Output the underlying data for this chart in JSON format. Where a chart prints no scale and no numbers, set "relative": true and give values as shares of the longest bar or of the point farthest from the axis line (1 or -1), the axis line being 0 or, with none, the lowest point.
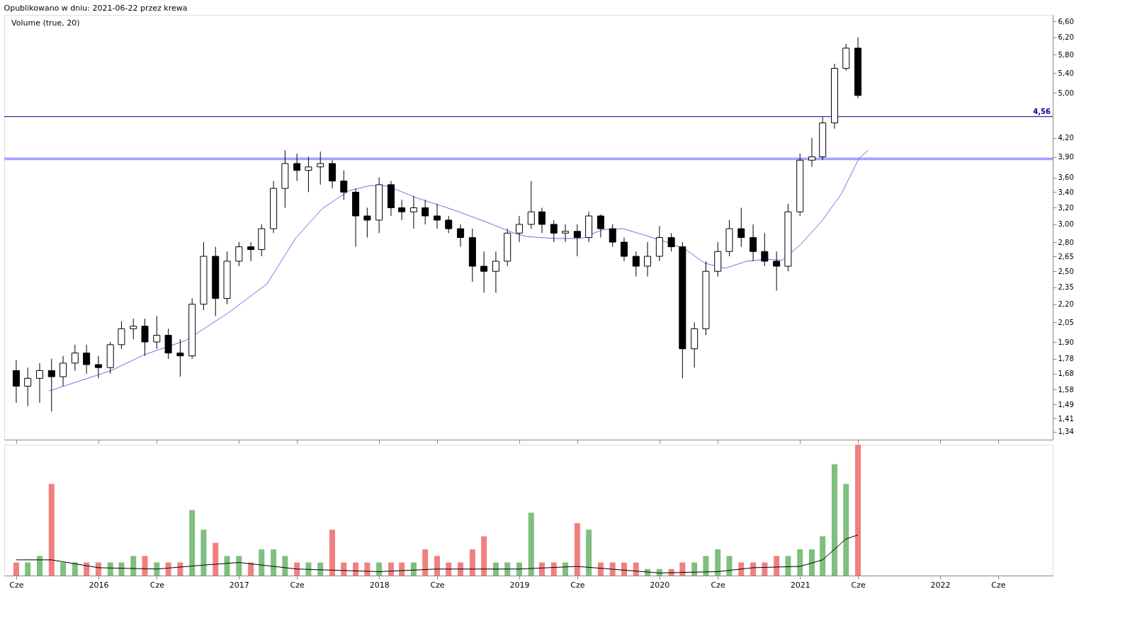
{
  "chart_data": [
    {
      "type": "candlestick",
      "title": "Opublikowano w dniu: 2021-06-22 przez krewa",
      "annotations": [
        "Volume (true, 20)"
      ],
      "x": [
        "2015-06",
        "2015-07",
        "2015-08",
        "2015-09",
        "2015-10",
        "2015-11",
        "2015-12",
        "2016-01",
        "2016-02",
        "2016-03",
        "2016-04",
        "2016-05",
        "2016-06",
        "2016-07",
        "2016-08",
        "2016-09",
        "2016-10",
        "2016-11",
        "2016-12",
        "2017-01",
        "2017-02",
        "2017-03",
        "2017-04",
        "2017-05",
        "2017-06",
        "2017-07",
        "2017-08",
        "2017-09",
        "2017-10",
        "2017-11",
        "2017-12",
        "2018-01",
        "2018-02",
        "2018-03",
        "2018-04",
        "2018-05",
        "2018-06",
        "2018-07",
        "2018-08",
        "2018-09",
        "2018-10",
        "2018-11",
        "2018-12",
        "2019-01",
        "2019-02",
        "2019-03",
        "2019-04",
        "2019-05",
        "2019-06",
        "2019-07",
        "2019-08",
        "2019-09",
        "2019-10",
        "2019-11",
        "2019-12",
        "2020-01",
        "2020-02",
        "2020-03",
        "2020-04",
        "2020-05",
        "2020-06",
        "2020-07",
        "2020-08",
        "2020-09",
        "2020-10",
        "2020-11",
        "2020-12",
        "2021-01",
        "2021-02",
        "2021-03",
        "2021-04",
        "2021-05",
        "2021-06"
      ],
      "ohlc": [
        [
          1.7,
          1.77,
          1.5,
          1.6
        ],
        [
          1.6,
          1.72,
          1.48,
          1.65
        ],
        [
          1.65,
          1.75,
          1.5,
          1.7
        ],
        [
          1.7,
          1.78,
          1.45,
          1.66
        ],
        [
          1.66,
          1.8,
          1.6,
          1.75
        ],
        [
          1.75,
          1.88,
          1.7,
          1.82
        ],
        [
          1.82,
          1.88,
          1.68,
          1.74
        ],
        [
          1.74,
          1.8,
          1.65,
          1.72
        ],
        [
          1.72,
          1.9,
          1.68,
          1.88
        ],
        [
          1.88,
          2.06,
          1.85,
          2.0
        ],
        [
          2.0,
          2.08,
          1.92,
          2.02
        ],
        [
          2.02,
          2.08,
          1.8,
          1.9
        ],
        [
          1.9,
          2.1,
          1.85,
          1.95
        ],
        [
          1.95,
          2.0,
          1.78,
          1.82
        ],
        [
          1.82,
          1.92,
          1.66,
          1.8
        ],
        [
          1.8,
          2.25,
          1.78,
          2.2
        ],
        [
          2.2,
          2.8,
          2.15,
          2.65
        ],
        [
          2.65,
          2.75,
          2.1,
          2.25
        ],
        [
          2.25,
          2.7,
          2.2,
          2.6
        ],
        [
          2.6,
          2.8,
          2.55,
          2.75
        ],
        [
          2.75,
          2.8,
          2.6,
          2.72
        ],
        [
          2.72,
          3.0,
          2.65,
          2.95
        ],
        [
          2.95,
          3.55,
          2.9,
          3.45
        ],
        [
          3.45,
          4.0,
          3.2,
          3.8
        ],
        [
          3.8,
          3.95,
          3.55,
          3.7
        ],
        [
          3.7,
          3.9,
          3.4,
          3.75
        ],
        [
          3.75,
          3.98,
          3.5,
          3.8
        ],
        [
          3.8,
          3.85,
          3.45,
          3.55
        ],
        [
          3.55,
          3.7,
          3.3,
          3.4
        ],
        [
          3.4,
          3.45,
          2.75,
          3.1
        ],
        [
          3.1,
          3.2,
          2.85,
          3.05
        ],
        [
          3.05,
          3.6,
          2.9,
          3.5
        ],
        [
          3.5,
          3.55,
          3.1,
          3.2
        ],
        [
          3.2,
          3.3,
          3.05,
          3.15
        ],
        [
          3.15,
          3.35,
          2.95,
          3.2
        ],
        [
          3.2,
          3.3,
          3.0,
          3.1
        ],
        [
          3.1,
          3.25,
          2.95,
          3.05
        ],
        [
          3.05,
          3.1,
          2.9,
          2.95
        ],
        [
          2.95,
          3.0,
          2.75,
          2.85
        ],
        [
          2.85,
          2.95,
          2.4,
          2.55
        ],
        [
          2.55,
          2.7,
          2.3,
          2.5
        ],
        [
          2.5,
          2.7,
          2.3,
          2.6
        ],
        [
          2.6,
          2.95,
          2.55,
          2.9
        ],
        [
          2.9,
          3.1,
          2.8,
          3.0
        ],
        [
          3.0,
          3.55,
          2.95,
          3.15
        ],
        [
          3.15,
          3.2,
          2.9,
          3.0
        ],
        [
          3.0,
          3.05,
          2.8,
          2.9
        ],
        [
          2.9,
          3.0,
          2.8,
          2.92
        ],
        [
          2.92,
          3.0,
          2.65,
          2.85
        ],
        [
          2.85,
          3.15,
          2.8,
          3.1
        ],
        [
          3.1,
          3.12,
          2.85,
          2.95
        ],
        [
          2.95,
          3.0,
          2.75,
          2.8
        ],
        [
          2.8,
          2.85,
          2.6,
          2.65
        ],
        [
          2.65,
          2.7,
          2.45,
          2.55
        ],
        [
          2.55,
          2.8,
          2.45,
          2.65
        ],
        [
          2.65,
          2.98,
          2.6,
          2.85
        ],
        [
          2.85,
          2.9,
          2.7,
          2.75
        ],
        [
          2.75,
          2.8,
          1.65,
          1.85
        ],
        [
          1.85,
          2.05,
          1.72,
          2.0
        ],
        [
          2.0,
          2.6,
          1.95,
          2.5
        ],
        [
          2.5,
          2.8,
          2.45,
          2.7
        ],
        [
          2.7,
          3.05,
          2.65,
          2.95
        ],
        [
          2.95,
          3.2,
          2.75,
          2.85
        ],
        [
          2.85,
          3.0,
          2.6,
          2.7
        ],
        [
          2.7,
          2.9,
          2.55,
          2.6
        ],
        [
          2.6,
          2.7,
          2.32,
          2.55
        ],
        [
          2.55,
          3.25,
          2.5,
          3.15
        ],
        [
          3.15,
          3.95,
          3.1,
          3.85
        ],
        [
          3.85,
          4.2,
          3.75,
          3.9
        ],
        [
          3.9,
          4.55,
          3.85,
          4.45
        ],
        [
          4.45,
          5.6,
          4.35,
          5.5
        ],
        [
          5.5,
          6.05,
          5.45,
          5.95
        ],
        [
          5.95,
          6.2,
          4.9,
          4.95
        ]
      ],
      "series": [
        {
          "type": "line",
          "color": "#7b68ee",
          "x": [
            "2015-08-25",
            "2016-02-03",
            "2016-05-01",
            "2016-08-15",
            "2016-12-01",
            "2017-03-15",
            "2017-05-28",
            "2017-08-06",
            "2017-10-15",
            "2017-12-10",
            "2018-01-23",
            "2018-04-12",
            "2018-07-10",
            "2018-10-06",
            "2018-12-18",
            "2019-01-22",
            "2019-04-03",
            "2019-06-12",
            "2019-08-06",
            "2019-09-28",
            "2019-11-21",
            "2020-01-13",
            "2020-03-06",
            "2020-04-28",
            "2020-06-21",
            "2020-08-15",
            "2020-10-06",
            "2020-11-16",
            "2021-01-04",
            "2021-02-27",
            "2021-04-19",
            "2021-06-04",
            "2021-06-28"
          ],
          "values": [
            1.57,
            1.7,
            1.81,
            1.91,
            2.12,
            2.38,
            2.84,
            3.19,
            3.42,
            3.49,
            3.48,
            3.32,
            3.18,
            3.03,
            2.9,
            2.86,
            2.84,
            2.84,
            2.94,
            2.95,
            2.88,
            2.81,
            2.73,
            2.58,
            2.53,
            2.6,
            2.62,
            2.61,
            2.78,
            3.04,
            3.38,
            3.88,
            4.0
          ]
        }
      ],
      "xlim": [
        "2015-05-10",
        "2022-10-12"
      ],
      "xticks": [
        {
          "value": "2015-06",
          "label": null
        },
        {
          "value": "2016",
          "label": null
        },
        {
          "value": "2016-06",
          "label": null
        },
        {
          "value": "2017",
          "label": null
        },
        {
          "value": "2017-06",
          "label": null
        },
        {
          "value": "2018",
          "label": null
        },
        {
          "value": "2018-06",
          "label": null
        },
        {
          "value": "2019",
          "label": null
        },
        {
          "value": "2019-06",
          "label": null
        },
        {
          "value": "2020",
          "label": null
        },
        {
          "value": "2020-06",
          "label": null
        },
        {
          "value": "2021",
          "label": null
        },
        {
          "value": "2021-06",
          "label": null
        },
        {
          "value": "2022",
          "label": null
        },
        {
          "value": "2022-06",
          "label": null
        }
      ],
      "tick_labels": "y",
      "log": "y",
      "ylim": [
        1.3,
        6.77
      ],
      "yticks": [
        {
          "value": 1.34,
          "label": "1,34"
        },
        {
          "value": 1.41,
          "label": "1,41"
        },
        {
          "value": 1.49,
          "label": "1,49"
        },
        {
          "value": 1.58,
          "label": "1,58"
        },
        {
          "value": 1.68,
          "label": "1,68"
        },
        {
          "value": 1.78,
          "label": "1,78"
        },
        {
          "value": 1.9,
          "label": "1,90"
        },
        {
          "value": 2.05,
          "label": "2,05"
        },
        {
          "value": 2.2,
          "label": "2,20"
        },
        {
          "value": 2.35,
          "label": "2,35"
        },
        {
          "value": 2.5,
          "label": "2,50"
        },
        {
          "value": 2.65,
          "label": "2,65"
        },
        {
          "value": 2.8,
          "label": "2,80"
        },
        {
          "value": 3.0,
          "label": "3,00"
        },
        {
          "value": 3.2,
          "label": "3,20"
        },
        {
          "value": 3.4,
          "label": "3,40"
        },
        {
          "value": 3.6,
          "label": "3,60"
        },
        {
          "value": 3.9,
          "label": "3,90"
        },
        {
          "value": 4.2,
          "label": "4,20"
        },
        {
          "value": 5.0,
          "label": "5,00"
        },
        {
          "value": 5.4,
          "label": "5,40"
        },
        {
          "value": 5.8,
          "label": "5,80"
        },
        {
          "value": 6.2,
          "label": "6,20"
        },
        {
          "value": 6.6,
          "label": "6,60"
        }
      ],
      "ref_lines": [
        {
          "axis": "y",
          "value": 4.56,
          "label": "4,56",
          "color": "#00008b"
        }
      ],
      "bands": [
        {
          "axis": "y",
          "from": 3.85,
          "to": 3.89,
          "color": "#9999ff"
        }
      ],
      "grid": false
    },
    {
      "type": "bar",
      "relative": true,
      "x": [
        "2015-06",
        "2015-07",
        "2015-08",
        "2015-09",
        "2015-10",
        "2015-11",
        "2015-12",
        "2016-01",
        "2016-02",
        "2016-03",
        "2016-04",
        "2016-05",
        "2016-06",
        "2016-07",
        "2016-08",
        "2016-09",
        "2016-10",
        "2016-11",
        "2016-12",
        "2017-01",
        "2017-02",
        "2017-03",
        "2017-04",
        "2017-05",
        "2017-06",
        "2017-07",
        "2017-08",
        "2017-09",
        "2017-10",
        "2017-11",
        "2017-12",
        "2018-01",
        "2018-02",
        "2018-03",
        "2018-04",
        "2018-05",
        "2018-06",
        "2018-07",
        "2018-08",
        "2018-09",
        "2018-10",
        "2018-11",
        "2018-12",
        "2019-01",
        "2019-02",
        "2019-03",
        "2019-04",
        "2019-05",
        "2019-06",
        "2019-07",
        "2019-08",
        "2019-09",
        "2019-10",
        "2019-11",
        "2019-12",
        "2020-01",
        "2020-02",
        "2020-03",
        "2020-04",
        "2020-05",
        "2020-06",
        "2020-07",
        "2020-08",
        "2020-09",
        "2020-10",
        "2020-11",
        "2020-12",
        "2021-01",
        "2021-02",
        "2021-03",
        "2021-04",
        "2021-05",
        "2021-06"
      ],
      "series": [
        {
          "type": "bar",
          "values": [
            0.1,
            0.1,
            0.15,
            0.7,
            0.1,
            0.1,
            0.1,
            0.1,
            0.1,
            0.1,
            0.15,
            0.15,
            0.1,
            0.1,
            0.1,
            0.5,
            0.35,
            0.25,
            0.15,
            0.15,
            0.1,
            0.2,
            0.2,
            0.15,
            0.1,
            0.1,
            0.1,
            0.35,
            0.1,
            0.1,
            0.1,
            0.1,
            0.1,
            0.1,
            0.1,
            0.2,
            0.15,
            0.1,
            0.1,
            0.2,
            0.3,
            0.1,
            0.1,
            0.1,
            0.48,
            0.1,
            0.1,
            0.1,
            0.4,
            0.35,
            0.1,
            0.1,
            0.1,
            0.1,
            0.05,
            0.05,
            0.05,
            0.1,
            0.1,
            0.15,
            0.2,
            0.15,
            0.1,
            0.1,
            0.1,
            0.15,
            0.15,
            0.2,
            0.2,
            0.3,
            0.85,
            0.7,
            1.0
          ],
          "colors": [
            "#f08080",
            "#7fbf7f",
            "#7fbf7f",
            "#f08080",
            "#7fbf7f",
            "#7fbf7f",
            "#f08080",
            "#f08080",
            "#7fbf7f",
            "#7fbf7f",
            "#7fbf7f",
            "#f08080",
            "#7fbf7f",
            "#f08080",
            "#f08080",
            "#7fbf7f",
            "#7fbf7f",
            "#f08080",
            "#7fbf7f",
            "#7fbf7f",
            "#f08080",
            "#7fbf7f",
            "#7fbf7f",
            "#7fbf7f",
            "#f08080",
            "#7fbf7f",
            "#7fbf7f",
            "#f08080",
            "#f08080",
            "#f08080",
            "#f08080",
            "#7fbf7f",
            "#f08080",
            "#f08080",
            "#7fbf7f",
            "#f08080",
            "#f08080",
            "#f08080",
            "#f08080",
            "#f08080",
            "#f08080",
            "#7fbf7f",
            "#7fbf7f",
            "#7fbf7f",
            "#7fbf7f",
            "#f08080",
            "#f08080",
            "#7fbf7f",
            "#f08080",
            "#7fbf7f",
            "#f08080",
            "#f08080",
            "#f08080",
            "#f08080",
            "#7fbf7f",
            "#7fbf7f",
            "#f08080",
            "#f08080",
            "#7fbf7f",
            "#7fbf7f",
            "#7fbf7f",
            "#7fbf7f",
            "#f08080",
            "#f08080",
            "#f08080",
            "#f08080",
            "#7fbf7f",
            "#7fbf7f",
            "#7fbf7f",
            "#7fbf7f",
            "#7fbf7f",
            "#7fbf7f",
            "#f08080"
          ]
        },
        {
          "type": "line",
          "color": "#000000",
          "x": [
            "2015-06",
            "2015-09",
            "2016-01",
            "2016-06",
            "2016-10",
            "2017-01",
            "2017-06",
            "2018-01",
            "2018-06",
            "2019-01",
            "2019-06",
            "2020-01",
            "2020-06",
            "2020-09",
            "2021-01",
            "2021-03",
            "2021-05",
            "2021-06"
          ],
          "values": [
            0.12,
            0.12,
            0.06,
            0.05,
            0.08,
            0.1,
            0.05,
            0.03,
            0.05,
            0.05,
            0.07,
            0.02,
            0.03,
            0.06,
            0.07,
            0.12,
            0.28,
            0.31
          ]
        }
      ],
      "xlim": [
        "2015-05-10",
        "2022-10-12"
      ],
      "xticks": [
        {
          "value": "2015-06",
          "label": "Cze"
        },
        {
          "value": "2016",
          "label": "2016"
        },
        {
          "value": "2016-06",
          "label": "Cze"
        },
        {
          "value": "2017",
          "label": "2017"
        },
        {
          "value": "2017-06",
          "label": "Cze"
        },
        {
          "value": "2018",
          "label": "2018"
        },
        {
          "value": "2018-06",
          "label": "Cze"
        },
        {
          "value": "2019",
          "label": "2019"
        },
        {
          "value": "2019-06",
          "label": "Cze"
        },
        {
          "value": "2020",
          "label": "2020"
        },
        {
          "value": "2020-06",
          "label": "Cze"
        },
        {
          "value": "2021",
          "label": "2021"
        },
        {
          "value": "2021-06",
          "label": "Cze"
        },
        {
          "value": "2022",
          "label": "2022"
        },
        {
          "value": "2022-06",
          "label": "Cze"
        }
      ],
      "tick_labels": "x",
      "grid": false
    }
  ]
}
